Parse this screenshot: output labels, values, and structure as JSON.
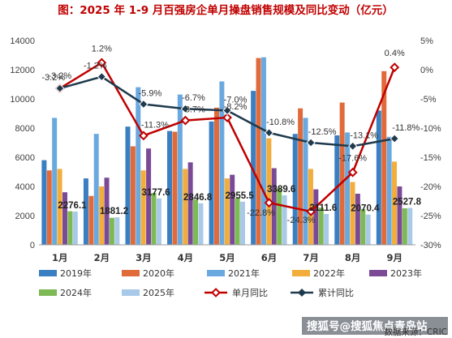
{
  "title": "图：2025 年 1-9 月百强房企单月操盘销售规模及同比变动（亿元）",
  "source": "数据来源：CRIC",
  "watermark": "搜狐号@搜狐焦点青岛站",
  "chart_data": {
    "type": "bar",
    "categories": [
      "1月",
      "2月",
      "3月",
      "4月",
      "5月",
      "6月",
      "7月",
      "8月",
      "9月"
    ],
    "ylim": [
      0,
      14000
    ],
    "y2lim": [
      -30,
      5
    ],
    "yticks": [
      "0",
      "2000",
      "4000",
      "6000",
      "8000",
      "10000",
      "12000",
      "14000"
    ],
    "y2ticks": [
      "-30%",
      "-25%",
      "-20%",
      "-15%",
      "-10%",
      "-5%",
      "0%",
      "5%"
    ],
    "grid": false,
    "legend_position": "bottom",
    "series": [
      {
        "name": "2019年",
        "color": "#3a7fc2",
        "values": [
          5800,
          4550,
          8100,
          7800,
          8450,
          10550,
          7600,
          7500,
          9200
        ]
      },
      {
        "name": "2020年",
        "color": "#e06a3a",
        "values": [
          5100,
          3350,
          6750,
          7750,
          9400,
          12800,
          9350,
          9750,
          11900
        ]
      },
      {
        "name": "2021年",
        "color": "#6aa9df",
        "values": [
          8700,
          7600,
          10800,
          10300,
          11200,
          12850,
          8700,
          7700,
          7400
        ]
      },
      {
        "name": "2022年",
        "color": "#f2ad3b",
        "values": [
          5200,
          4000,
          5100,
          5200,
          4550,
          7300,
          5200,
          4300,
          5700
        ]
      },
      {
        "name": "2023年",
        "color": "#7b4a96",
        "values": [
          3600,
          4600,
          6600,
          5650,
          4800,
          5250,
          3800,
          3500,
          4000
        ]
      },
      {
        "name": "2024年",
        "color": "#7db954",
        "values": [
          2300,
          1850,
          3550,
          3100,
          3200,
          3900,
          2550,
          2450,
          2500
        ]
      },
      {
        "name": "2025年",
        "color": "#a9c9e8",
        "values": [
          2276.1,
          1881.2,
          3177.6,
          2846.8,
          2955.5,
          3389.6,
          2111.6,
          2070.4,
          2527.8
        ]
      }
    ],
    "data_labels": [
      "2276.1",
      "1881.2",
      "3177.6",
      "2846.8",
      "2955.5",
      "3389.6",
      "2111.6",
      "2070.4",
      "2527.8"
    ],
    "lines": [
      {
        "name": "单月同比",
        "color": "#c00000",
        "values": [
          -3.2,
          1.2,
          -11.3,
          -8.7,
          -8.2,
          -22.8,
          -24.3,
          -17.6,
          0.4
        ],
        "labels": [
          "-3.2%",
          "1.2%",
          "-11.3%",
          "-8.7%",
          "-8.2%",
          "-22.8%",
          "-24.3%",
          "-17.6%",
          "0.4%"
        ]
      },
      {
        "name": "累计同比",
        "color": "#1f3a4d",
        "values": [
          -3.2,
          -1.2,
          -5.9,
          -6.7,
          -7.0,
          -10.8,
          -12.5,
          -13.1,
          -11.8
        ],
        "labels": [
          "-3.2%",
          "-1.2%",
          "-5.9%",
          "-6.7%",
          "-7.0%",
          "-10.8%",
          "-12.5%",
          "-13.1%",
          "-11.8%"
        ]
      }
    ]
  }
}
